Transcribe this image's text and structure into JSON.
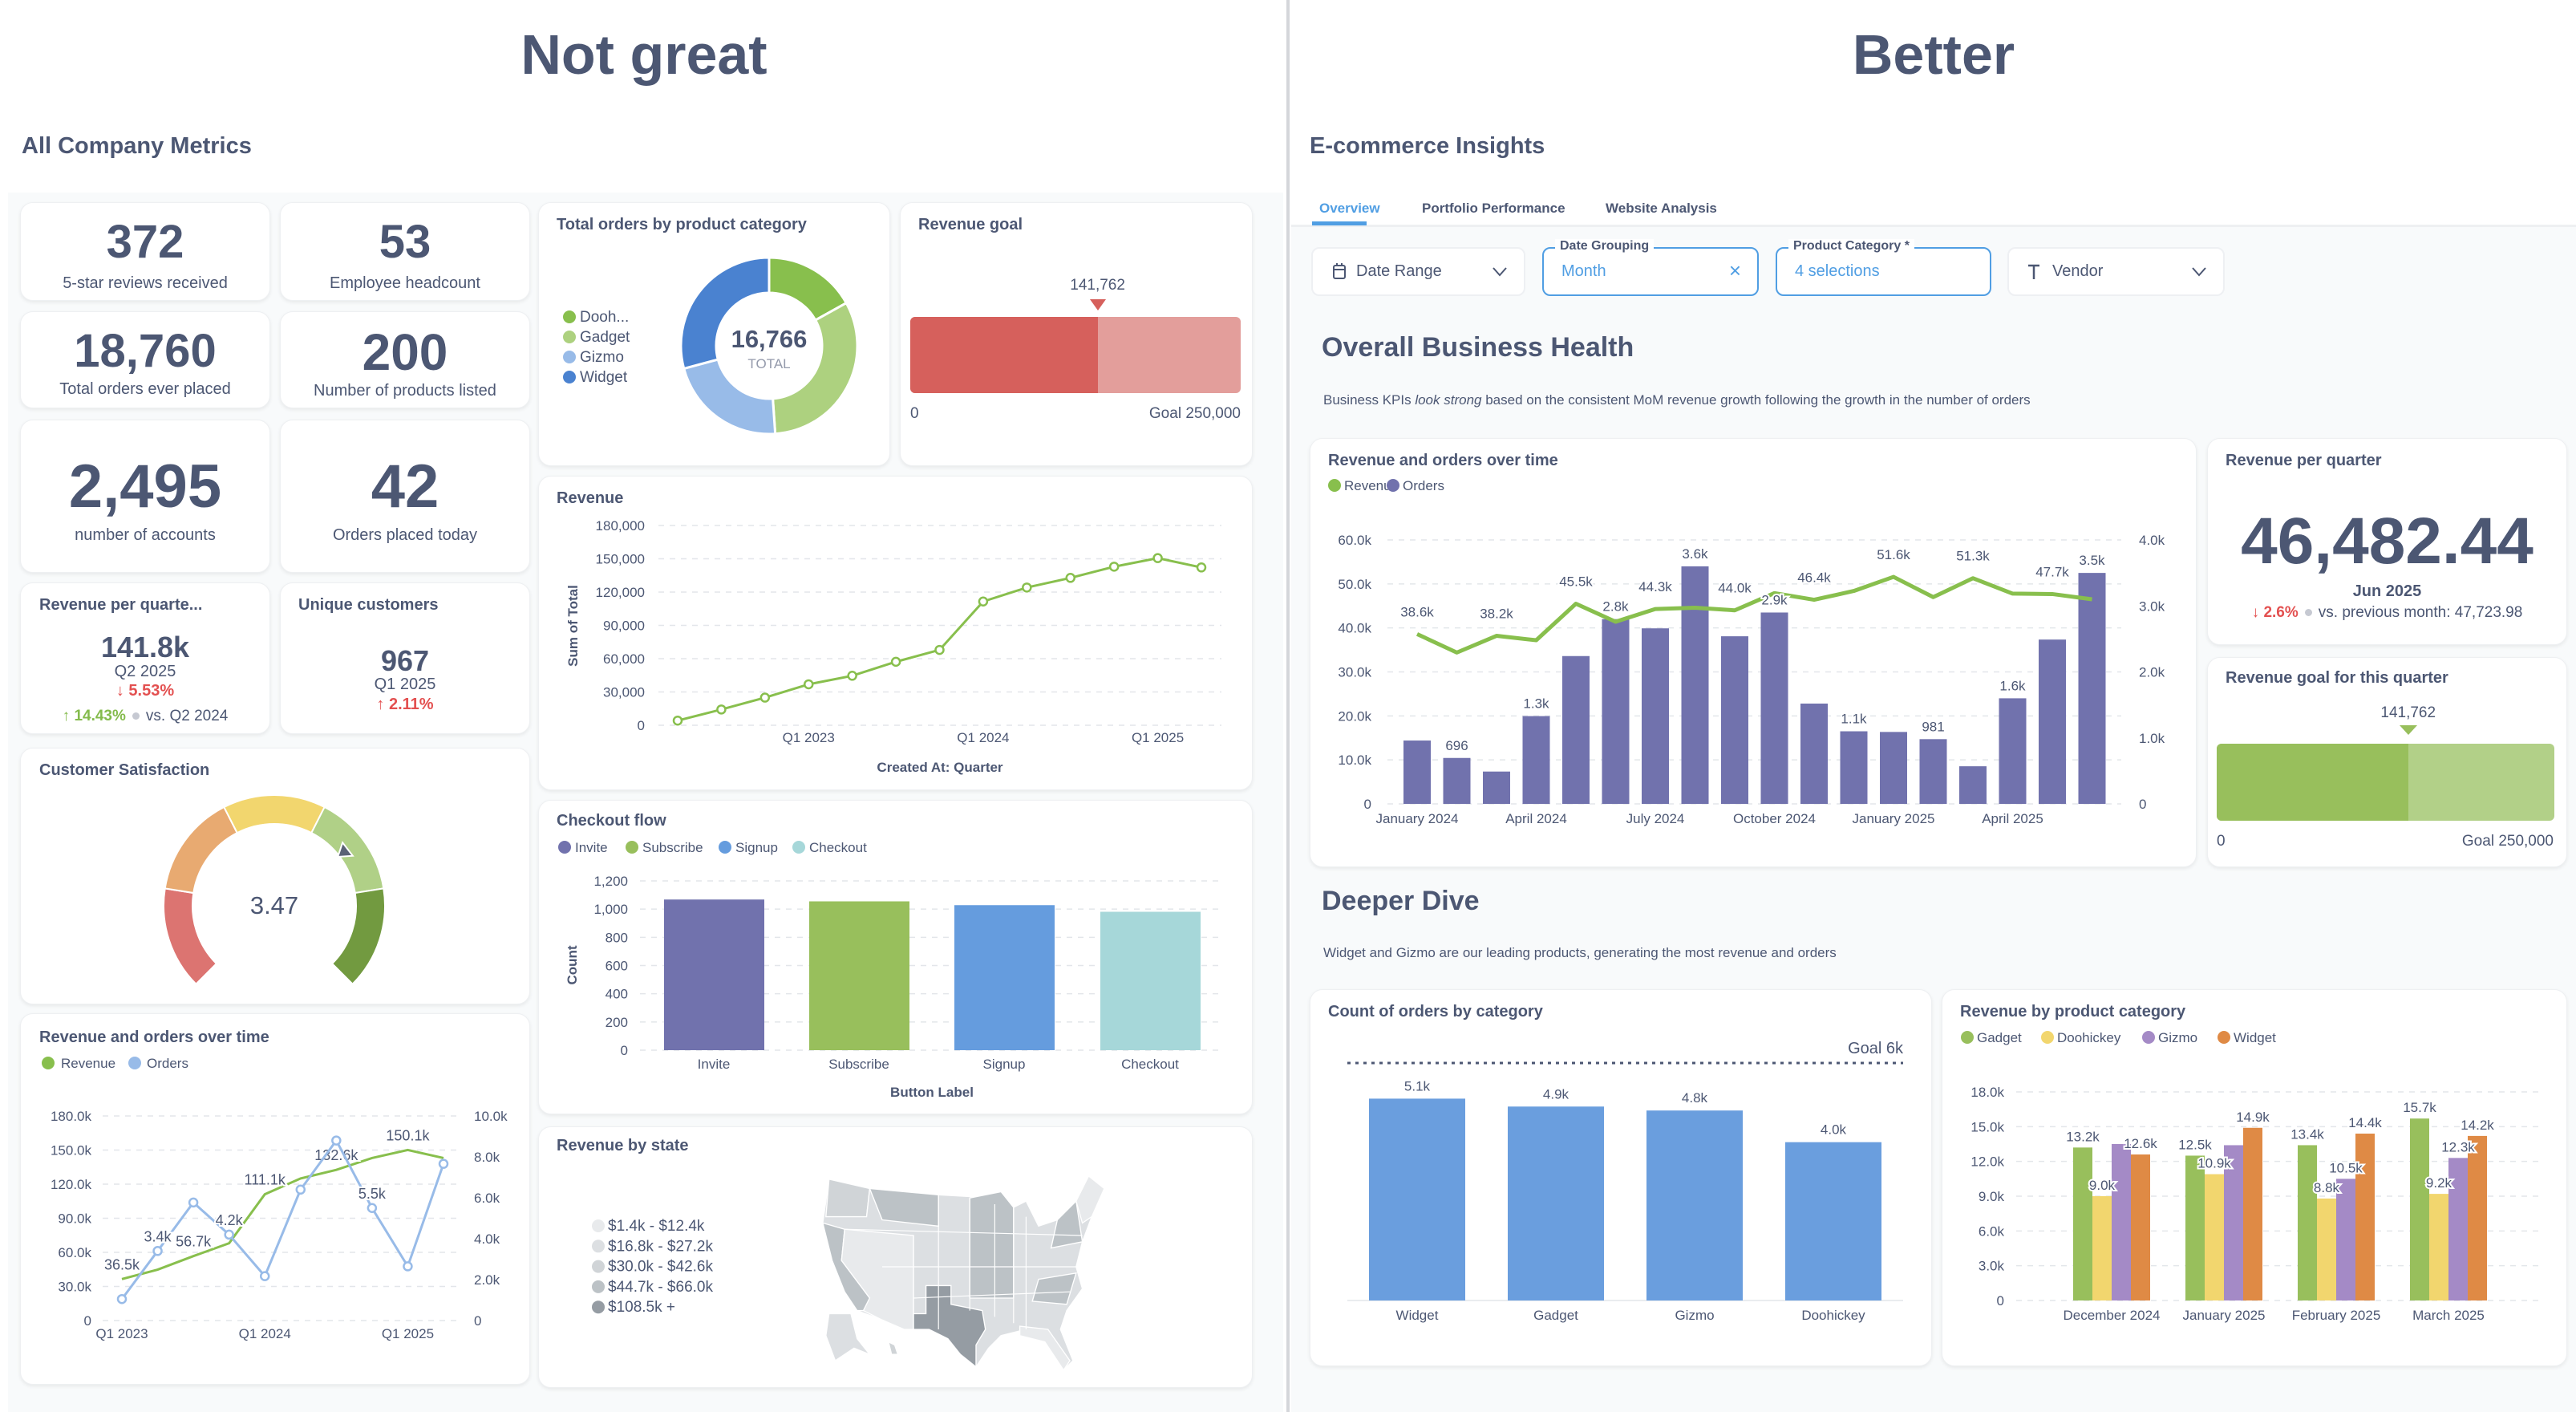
{
  "left": {
    "heading": "Not great",
    "dashboard_title": "All Company Metrics",
    "kpis": [
      {
        "value": "372",
        "label": "5-star reviews received"
      },
      {
        "value": "53",
        "label": "Employee headcount"
      },
      {
        "value": "18,760",
        "label": "Total orders ever placed"
      },
      {
        "value": "200",
        "label": "Number of products listed"
      },
      {
        "value": "2,495",
        "label": "number of accounts"
      },
      {
        "value": "42",
        "label": "Orders placed today"
      }
    ],
    "revenue_per_quarter": {
      "title": "Revenue per quarte...",
      "value": "141.8k",
      "period": "Q2 2025",
      "change": "5.53%",
      "change_direction": "down",
      "comparison_change": "14.43%",
      "comparison_direction": "up",
      "comparison_label": "vs. Q2 2024"
    },
    "unique_customers": {
      "title": "Unique customers",
      "value": "967",
      "period": "Q1 2025",
      "change": "2.11%",
      "change_direction": "up"
    },
    "customer_satisfaction": {
      "title": "Customer Satisfaction",
      "value_label": "3.47",
      "value": 3.47,
      "min": 0,
      "max": 5,
      "segment_colors": [
        "#DC7471",
        "#E8AA71",
        "#F2D66E",
        "#B0D087",
        "#729A40"
      ]
    },
    "revenue_goal": {
      "title": "Revenue goal",
      "value": 141762,
      "value_label": "141,762",
      "goal": 250000,
      "min_label": "0",
      "goal_label": "Goal 250,000",
      "colors": {
        "fill": "#D6605C",
        "rest": "#E39E9B"
      }
    },
    "revenue_by_state": {
      "title": "Revenue by state",
      "legend": [
        "$1.4k - $12.4k",
        "$16.8k - $27.2k",
        "$30.0k - $42.6k",
        "$44.7k - $66.0k",
        "$108.5k +"
      ],
      "legend_colors": [
        "#E8EAEC",
        "#DCDFE2",
        "#D0D4D7",
        "#BCC2C6",
        "#959CA3"
      ]
    }
  },
  "right": {
    "heading": "Better",
    "dashboard_title": "E-commerce Insights",
    "tabs": [
      {
        "label": "Overview",
        "active": true
      },
      {
        "label": "Portfolio Performance"
      },
      {
        "label": "Website Analysis"
      }
    ],
    "filters": {
      "date_range": {
        "label": "Date Range"
      },
      "date_grouping": {
        "label": "Date Grouping",
        "value": "Month"
      },
      "product_category": {
        "label": "Product Category *",
        "value": "4 selections"
      },
      "vendor": {
        "label": "Vendor"
      }
    },
    "section1": {
      "title": "Overall Business Health",
      "desc_prefix": "Business KPIs ",
      "desc_emphasis": "look strong",
      "desc_suffix": " based on the consistent MoM revenue growth following the growth in the number of orders"
    },
    "revenue_per_quarter": {
      "title": "Revenue per quarter",
      "value": "46,482.44",
      "period": "Jun 2025",
      "change": "2.6%",
      "change_direction": "down",
      "comparison_label": "vs. previous month: 47,723.98"
    },
    "revenue_goal": {
      "title": "Revenue goal for this quarter",
      "value": 141762,
      "value_label": "141,762",
      "goal": 250000,
      "min_label": "0",
      "goal_label": "Goal 250,000",
      "colors": {
        "fill": "#98BF5C",
        "rest": "#B2D088"
      }
    },
    "section2": {
      "title": "Deeper Dive",
      "desc": "Widget and Gizmo are our leading products, generating the most revenue and orders"
    }
  },
  "colors": {
    "text": "#4C5773",
    "accent": "#509EE3",
    "negative": "#E35050",
    "positive": "#84BB4C"
  },
  "chart_data": [
    {
      "type": "pie",
      "title": "Total orders by product category",
      "categories": [
        "Dooh...",
        "Gadget",
        "Gizmo",
        "Widget"
      ],
      "values": [
        2841,
        5356,
        3679,
        4890
      ],
      "total": "16,766",
      "total_label": "TOTAL",
      "colors": [
        "#88BF4D",
        "#ADD17F",
        "#98BBE8",
        "#4A82D0"
      ],
      "legend": "left"
    },
    {
      "type": "line",
      "title": "Revenue",
      "x": [
        "Q2 2022",
        "Q3 2022",
        "Q4 2022",
        "Q1 2023",
        "Q2 2023",
        "Q3 2023",
        "Q4 2023",
        "Q1 2024",
        "Q2 2024",
        "Q3 2024",
        "Q4 2024",
        "Q1 2025",
        "Q2 2025"
      ],
      "values": [
        4200,
        14200,
        24900,
        36900,
        44600,
        57200,
        67900,
        111500,
        124100,
        132800,
        142900,
        150600,
        142200
      ],
      "x_tick_labels": [
        "Q1 2023",
        "Q1 2024",
        "Q1 2025"
      ],
      "y_ticks": [
        0,
        30000,
        60000,
        90000,
        120000,
        150000,
        180000
      ],
      "y_tick_labels": [
        "0",
        "30,000",
        "60,000",
        "90,000",
        "120,000",
        "150,000",
        "180,000"
      ],
      "ylim": [
        0,
        180000
      ],
      "xlabel": "Created At: Quarter",
      "ylabel": "Sum of Total",
      "color": "#88BF4D",
      "grid": true
    },
    {
      "type": "bar",
      "title": "Checkout flow",
      "categories": [
        "Invite",
        "Subscribe",
        "Signup",
        "Checkout"
      ],
      "values": [
        1068,
        1055,
        1028,
        981
      ],
      "colors": [
        "#7172AD",
        "#98BF5C",
        "#659CDE",
        "#A6D7D9"
      ],
      "y_ticks": [
        0,
        200,
        400,
        600,
        800,
        1000,
        1200
      ],
      "y_tick_labels": [
        "0",
        "200",
        "400",
        "600",
        "800",
        "1,000",
        "1,200"
      ],
      "ylim": [
        0,
        1200
      ],
      "xlabel": "Button Label",
      "ylabel": "Count",
      "legend": "top-left",
      "grid": true
    },
    {
      "type": "line",
      "title": "Revenue and orders over time",
      "x": [
        "Q1 2023",
        "Q2 2023",
        "Q3 2023",
        "Q4 2023",
        "Q1 2024",
        "Q2 2024",
        "Q3 2024",
        "Q4 2024",
        "Q1 2025",
        "Q2 2025"
      ],
      "x_tick_labels": [
        "Q1 2023",
        "Q1 2024",
        "Q1 2025"
      ],
      "series": [
        {
          "name": "Revenue",
          "axis": "left",
          "color": "#88BF4D",
          "values": [
            36500,
            44800,
            56700,
            68000,
            111100,
            125000,
            132600,
            143000,
            150100,
            143000
          ],
          "data_labels": [
            "36.5k",
            null,
            "56.7k",
            null,
            "111.1k",
            null,
            "132.6k",
            null,
            "150.1k",
            null
          ]
        },
        {
          "name": "Orders",
          "axis": "right",
          "color": "#98BBE8",
          "values": [
            1050,
            3400,
            5770,
            4200,
            2170,
            6400,
            8800,
            5500,
            2650,
            7660
          ],
          "data_labels": [
            null,
            "3.4k",
            null,
            "4.2k",
            null,
            null,
            null,
            "5.5k",
            null,
            null
          ]
        }
      ],
      "y_left_ticks": [
        0,
        30000,
        60000,
        90000,
        120000,
        150000,
        180000
      ],
      "y_left_tick_labels": [
        "0",
        "30.0k",
        "60.0k",
        "90.0k",
        "120.0k",
        "150.0k",
        "180.0k"
      ],
      "ylim_left": [
        0,
        180000
      ],
      "y_right_ticks": [
        0,
        2000,
        4000,
        6000,
        8000,
        10000
      ],
      "y_right_tick_labels": [
        "0",
        "2.0k",
        "4.0k",
        "6.0k",
        "8.0k",
        "10.0k"
      ],
      "ylim_right": [
        0,
        10000
      ],
      "legend": "top-left",
      "grid": true
    },
    {
      "type": "bar",
      "title": "Revenue and orders over time",
      "x": [
        "January 2024",
        "February 2024",
        "March 2024",
        "April 2024",
        "May 2024",
        "June 2024",
        "July 2024",
        "August 2024",
        "September 2024",
        "October 2024",
        "November 2024",
        "December 2024",
        "January 2025",
        "February 2025",
        "March 2025",
        "April 2025",
        "May 2025",
        "June 2025"
      ],
      "x_tick_labels": [
        "January 2024",
        "April 2024",
        "July 2024",
        "October 2024",
        "January 2025",
        "April 2025"
      ],
      "series": [
        {
          "name": "Revenue",
          "kind": "line",
          "axis": "left",
          "color": "#88BF4D",
          "values": [
            38600,
            34400,
            38200,
            37200,
            45500,
            41400,
            44300,
            44600,
            44000,
            47900,
            46400,
            48400,
            51600,
            47000,
            51300,
            47800,
            47700,
            46500
          ],
          "data_labels": [
            "38.6k",
            null,
            "38.2k",
            null,
            "45.5k",
            null,
            "44.3k",
            null,
            "44.0k",
            null,
            "46.4k",
            null,
            "51.6k",
            null,
            "51.3k",
            null,
            "47.7k",
            null
          ]
        },
        {
          "name": "Orders",
          "kind": "bar",
          "axis": "right",
          "color": "#7172AD",
          "values": [
            960,
            696,
            490,
            1330,
            2240,
            2800,
            2660,
            3600,
            2540,
            2900,
            1520,
            1100,
            1090,
            981,
            570,
            1600,
            2490,
            3500
          ],
          "data_labels": [
            null,
            "696",
            null,
            "1.3k",
            null,
            "2.8k",
            null,
            "3.6k",
            null,
            "2.9k",
            null,
            "1.1k",
            null,
            "981",
            null,
            "1.6k",
            null,
            "3.5k"
          ]
        }
      ],
      "y_left_ticks": [
        0,
        10000,
        20000,
        30000,
        40000,
        50000,
        60000
      ],
      "y_left_tick_labels": [
        "0",
        "10.0k",
        "20.0k",
        "30.0k",
        "40.0k",
        "50.0k",
        "60.0k"
      ],
      "ylim_left": [
        0,
        60000
      ],
      "y_right_ticks": [
        0,
        1000,
        2000,
        3000,
        4000
      ],
      "y_right_tick_labels": [
        "0",
        "1.0k",
        "2.0k",
        "3.0k",
        "4.0k"
      ],
      "ylim_right": [
        0,
        4000
      ],
      "legend": "top-left",
      "grid": true
    },
    {
      "type": "bar",
      "title": "Count of orders by category",
      "categories": [
        "Widget",
        "Gadget",
        "Gizmo",
        "Doohickey"
      ],
      "values": [
        5100,
        4900,
        4800,
        4000
      ],
      "data_labels": [
        "5.1k",
        "4.9k",
        "4.8k",
        "4.0k"
      ],
      "goal": 6000,
      "goal_label": "Goal 6k",
      "color": "#6A9EDE",
      "ylim": [
        0,
        6000
      ]
    },
    {
      "type": "bar",
      "title": "Revenue by product category",
      "categories": [
        "December 2024",
        "January 2025",
        "February 2025",
        "March 2025"
      ],
      "series": [
        {
          "name": "Gadget",
          "color": "#98BF5C",
          "values": [
            13200,
            12500,
            13400,
            15700
          ],
          "data_labels": [
            "13.2k",
            "12.5k",
            "13.4k",
            "15.7k"
          ]
        },
        {
          "name": "Doohickey",
          "color": "#F2D66E",
          "values": [
            9000,
            10900,
            8800,
            9200
          ],
          "data_labels": [
            "9.0k",
            "10.9k",
            "8.8k",
            "9.2k"
          ]
        },
        {
          "name": "Gizmo",
          "color": "#A48AC6",
          "values": [
            13500,
            13400,
            10500,
            12300
          ],
          "data_labels": [
            null,
            null,
            "10.5k",
            "12.3k"
          ]
        },
        {
          "name": "Widget",
          "color": "#DF8A45",
          "values": [
            12600,
            14900,
            14400,
            14200
          ],
          "data_labels": [
            "12.6k",
            "14.9k",
            "14.4k",
            "14.2k"
          ]
        }
      ],
      "y_ticks": [
        0,
        3000,
        6000,
        9000,
        12000,
        15000,
        18000
      ],
      "y_tick_labels": [
        "0",
        "3.0k",
        "6.0k",
        "9.0k",
        "12.0k",
        "15.0k",
        "18.0k"
      ],
      "ylim": [
        0,
        18000
      ],
      "legend": "top-left",
      "grid": true
    }
  ]
}
